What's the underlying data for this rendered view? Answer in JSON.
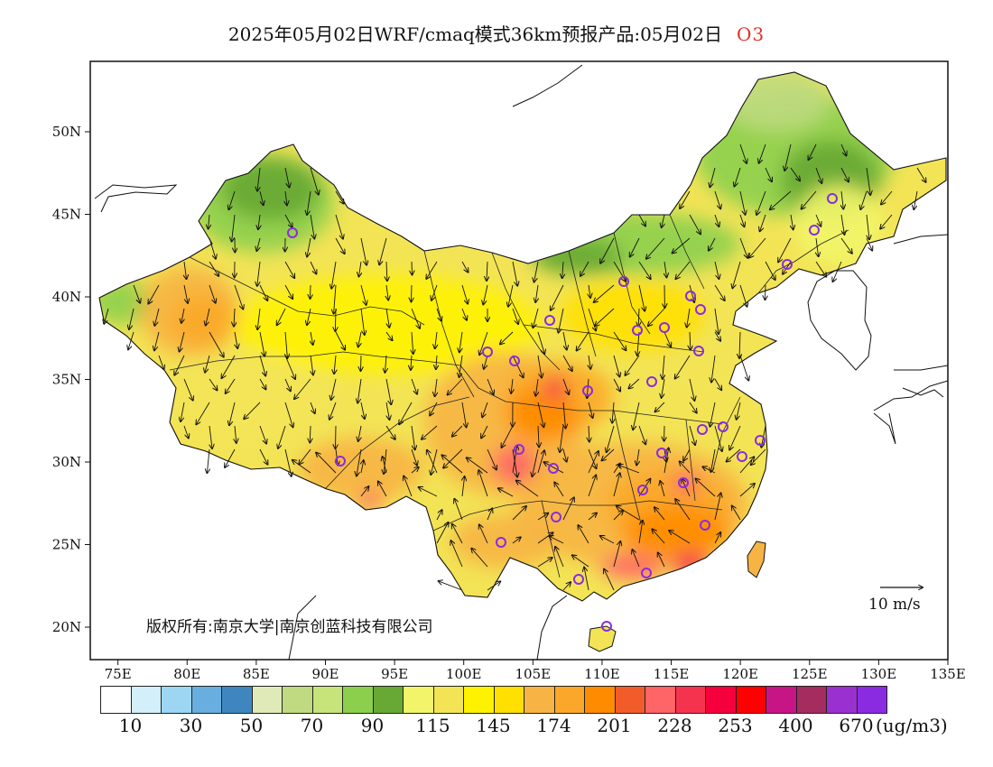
{
  "title": {
    "text": "2025年05月02日WRF/cmaq模式36km预报产品:05月02日",
    "species": "O3"
  },
  "axes": {
    "lon_ticks": [
      "75E",
      "80E",
      "85E",
      "90E",
      "95E",
      "100E",
      "105E",
      "110E",
      "115E",
      "120E",
      "125E",
      "130E",
      "135E"
    ],
    "lat_ticks": [
      "20N",
      "25N",
      "30N",
      "35N",
      "40N",
      "45N",
      "50N"
    ]
  },
  "copyright": "版权所有:南京大学|南京创蓝科技有限公司",
  "wind_reference": "10 m/s",
  "colorbar": {
    "colors": [
      "#ffffff",
      "#d2effa",
      "#9cd6f2",
      "#68aede",
      "#3f86c0",
      "#dfeab8",
      "#bfda80",
      "#c6e47a",
      "#8ccf4c",
      "#68a834",
      "#f2f56a",
      "#f3e456",
      "#fff200",
      "#ffe000",
      "#f7b444",
      "#fba82a",
      "#ff8c00",
      "#f25c2a",
      "#ff6466",
      "#f6334f",
      "#f5003c",
      "#ff0000",
      "#c71585",
      "#a42c5e",
      "#9a30cf",
      "#8a2be2"
    ],
    "labels": [
      "10",
      "30",
      "50",
      "70",
      "90",
      "115",
      "145",
      "174",
      "201",
      "228",
      "253",
      "400",
      "670"
    ],
    "unit": "(ug/m3)"
  },
  "map_layers": {
    "region": "China",
    "field": "O3",
    "stations": [
      "Urumqi",
      "Lhasa",
      "Xining",
      "Lanzhou",
      "Yinchuan",
      "Hohhot",
      "Beijing",
      "Tianjin",
      "Shijiazhuang",
      "Taiyuan",
      "Jinan",
      "Zhengzhou",
      "Xi'an",
      "Chengdu",
      "Chongqing",
      "Guiyang",
      "Kunming",
      "Nanning",
      "Haikou",
      "Guangzhou",
      "Changsha",
      "Wuhan",
      "Nanchang",
      "Fuzhou",
      "Hefei",
      "Nanjing",
      "Hangzhou",
      "Shanghai",
      "Shenyang",
      "Changchun",
      "Harbin"
    ]
  }
}
